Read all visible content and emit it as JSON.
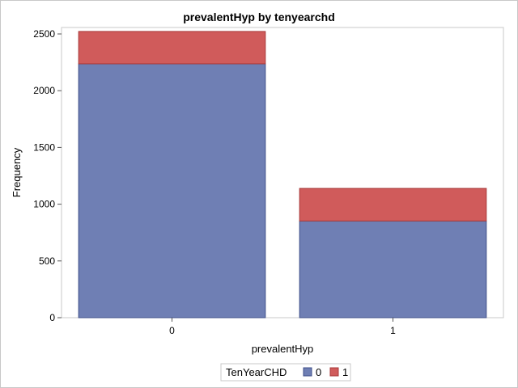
{
  "chart_data": {
    "type": "bar",
    "stacked": true,
    "title": "prevalentHyp by tenyearchd",
    "xlabel": "prevalentHyp",
    "ylabel": "Frequency",
    "categories": [
      "0",
      "1"
    ],
    "series": [
      {
        "name": "0",
        "values": [
          2237,
          852
        ],
        "color": "#6f7fb4"
      },
      {
        "name": "1",
        "values": [
          285,
          287
        ],
        "color": "#d05b5b"
      }
    ],
    "ylim": [
      0,
      2500
    ],
    "yticks": [
      0,
      500,
      1000,
      1500,
      2000,
      2500
    ],
    "legend": {
      "title": "TenYearCHD",
      "placement": "bottom"
    },
    "grid": false
  }
}
